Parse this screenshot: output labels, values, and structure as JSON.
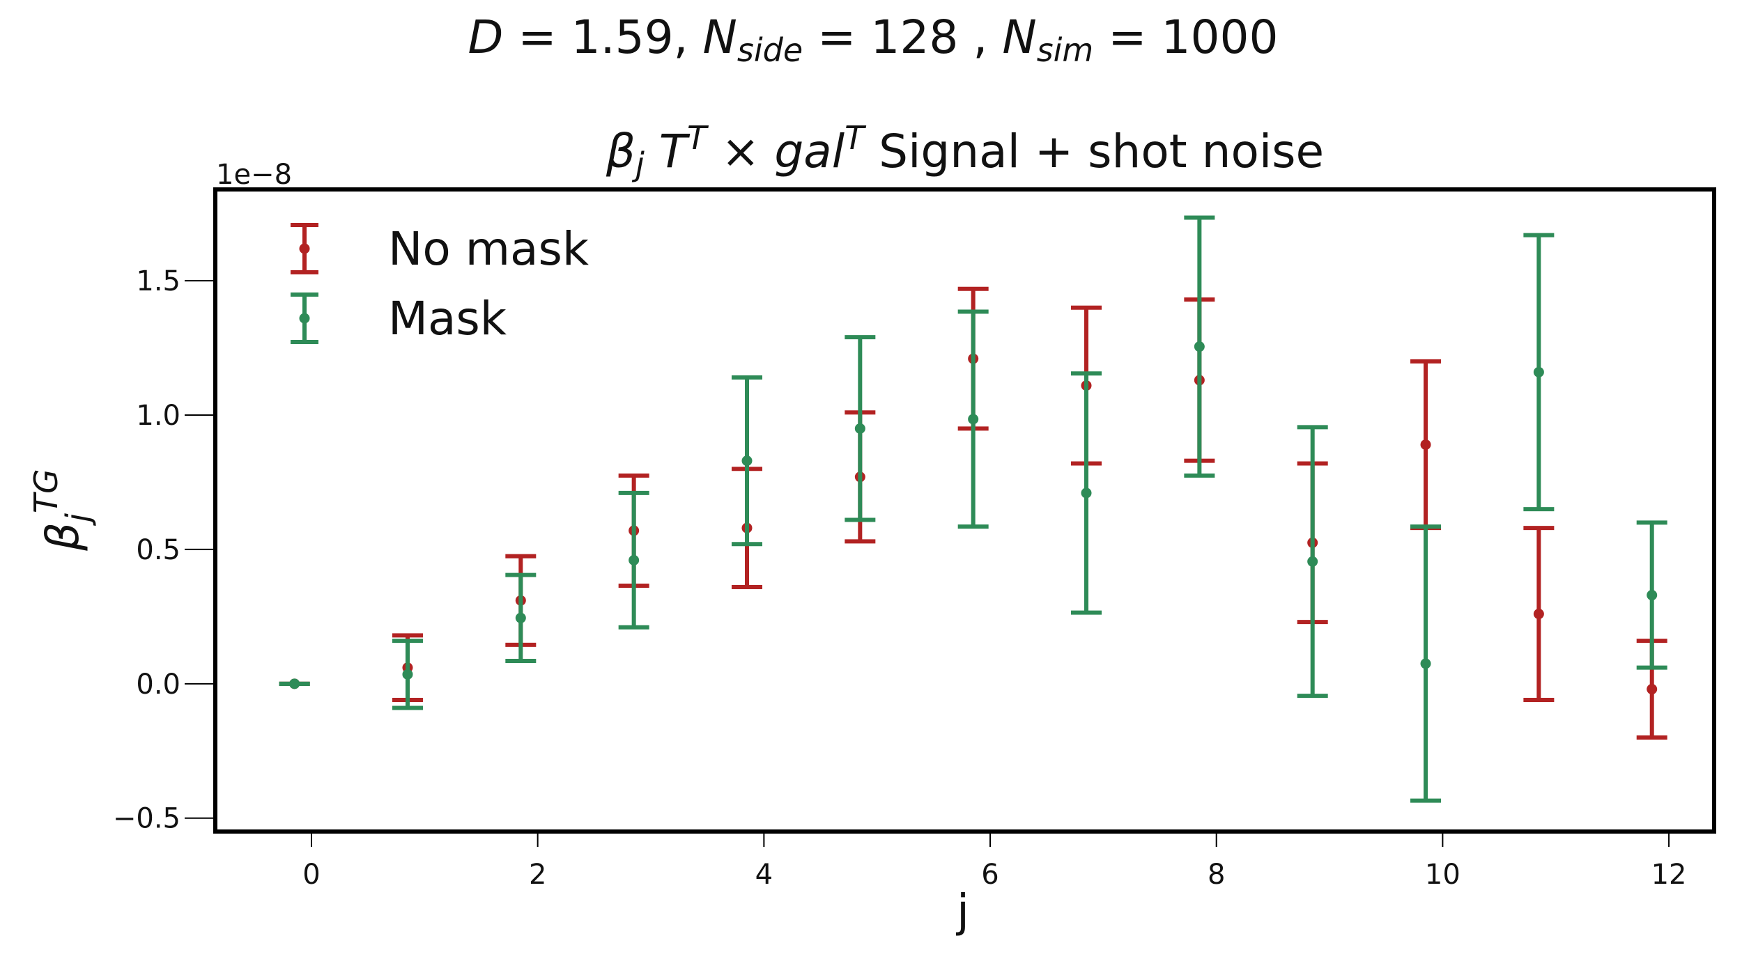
{
  "chart_data": {
    "type": "scatter",
    "suptitle": {
      "text": "D = 1.59,  N_side = 128 ,  N_sim = 1000"
    },
    "title": {
      "text": "β_j T^T × gal^T Signal + shot noise",
      "plain_suffix": "Signal + shot noise"
    },
    "xlabel": "j",
    "ylabel": "β_j^TG",
    "y_offset_text": "1e−8",
    "y_scale_factor": 1e-08,
    "xlim": [
      -0.85,
      12.4
    ],
    "ylim": [
      -0.55,
      1.84
    ],
    "x_ticks": [
      0,
      2,
      4,
      6,
      8,
      10,
      12
    ],
    "x_tick_labels": [
      "0",
      "2",
      "4",
      "6",
      "8",
      "10",
      "12"
    ],
    "y_ticks": [
      -0.5,
      0.0,
      0.5,
      1.0,
      1.5
    ],
    "y_tick_labels": [
      "−0.5",
      "0.0",
      "0.5",
      "1.0",
      "1.5"
    ],
    "legend_placement": "upper-left",
    "grid": false,
    "series": [
      {
        "name": "No mask",
        "color": "#b22222",
        "points": [
          {
            "x": -0.15,
            "y": 0.0,
            "err": 0.0
          },
          {
            "x": 0.85,
            "y": 0.06,
            "err": 0.12
          },
          {
            "x": 1.85,
            "y": 0.31,
            "err": 0.165
          },
          {
            "x": 2.85,
            "y": 0.57,
            "err": 0.205
          },
          {
            "x": 3.85,
            "y": 0.58,
            "err": 0.22
          },
          {
            "x": 4.85,
            "y": 0.77,
            "err": 0.24
          },
          {
            "x": 5.85,
            "y": 1.21,
            "err": 0.26
          },
          {
            "x": 6.85,
            "y": 1.11,
            "err": 0.29
          },
          {
            "x": 7.85,
            "y": 1.13,
            "err": 0.3
          },
          {
            "x": 8.85,
            "y": 0.525,
            "err": 0.295
          },
          {
            "x": 9.85,
            "y": 0.89,
            "err": 0.31
          },
          {
            "x": 10.85,
            "y": 0.26,
            "err": 0.32
          },
          {
            "x": 11.85,
            "y": -0.02,
            "err": 0.18
          }
        ]
      },
      {
        "name": "Mask",
        "color": "#2e8b57",
        "points": [
          {
            "x": -0.15,
            "y": 0.0,
            "err": 0.0
          },
          {
            "x": 0.85,
            "y": 0.035,
            "err": 0.125
          },
          {
            "x": 1.85,
            "y": 0.245,
            "err": 0.16
          },
          {
            "x": 2.85,
            "y": 0.46,
            "err": 0.25
          },
          {
            "x": 3.85,
            "y": 0.83,
            "err": 0.31
          },
          {
            "x": 4.85,
            "y": 0.95,
            "err": 0.34
          },
          {
            "x": 5.85,
            "y": 0.985,
            "err": 0.4
          },
          {
            "x": 6.85,
            "y": 0.71,
            "err": 0.445
          },
          {
            "x": 7.85,
            "y": 1.255,
            "err": 0.48
          },
          {
            "x": 8.85,
            "y": 0.455,
            "err": 0.5
          },
          {
            "x": 9.85,
            "y": 0.075,
            "err": 0.51
          },
          {
            "x": 10.85,
            "y": 1.16,
            "err": 0.51
          },
          {
            "x": 11.85,
            "y": 0.33,
            "err": 0.27
          }
        ]
      }
    ]
  }
}
